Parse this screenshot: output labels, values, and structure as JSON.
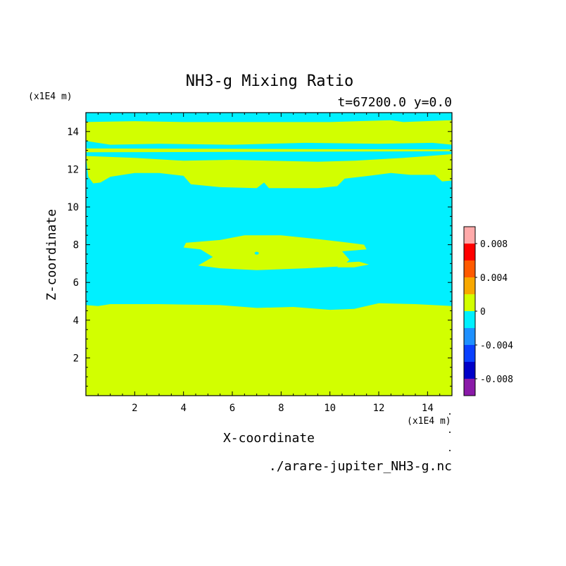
{
  "chart_data": {
    "type": "heatmap",
    "title": "NH3-g Mixing Ratio",
    "subtitle": "t=67200.0 y=0.0",
    "xlabel": "X-coordinate",
    "ylabel": "Z-coordinate",
    "x_unit": "(x1E4 m)",
    "y_unit": "(x1E4 m)",
    "xlim": [
      0,
      15
    ],
    "ylim": [
      0,
      15
    ],
    "x_ticks": [
      2,
      4,
      6,
      8,
      10,
      12,
      14
    ],
    "y_ticks": [
      2,
      4,
      6,
      8,
      10,
      12,
      14
    ],
    "source_file": "./arare-jupiter_NH3-g.nc",
    "colorbar": {
      "levels": [
        -0.01,
        -0.008,
        -0.006,
        -0.004,
        -0.002,
        0,
        0.002,
        0.004,
        0.006,
        0.008,
        0.01
      ],
      "colors": [
        "#8a1aa8",
        "#0000c8",
        "#0a40ff",
        "#1e90ff",
        "#00f0ff",
        "#d2ff00",
        "#f8a800",
        "#ff5a00",
        "#ff0000",
        "#ffaaaa"
      ],
      "tick_labels": [
        {
          "value": 0.008,
          "label": "0.008"
        },
        {
          "value": 0.004,
          "label": "0.004"
        },
        {
          "value": 0,
          "label": "0"
        },
        {
          "value": -0.004,
          "label": "-0.004"
        },
        {
          "value": -0.008,
          "label": "-0.008"
        }
      ]
    },
    "regions": [
      {
        "level": "0_to_0.002",
        "color": "#d2ff00",
        "description": "lower layer",
        "polygon": [
          [
            0,
            0
          ],
          [
            15,
            0
          ],
          [
            15,
            4.75
          ],
          [
            13.5,
            4.85
          ],
          [
            12,
            4.9
          ],
          [
            11,
            4.6
          ],
          [
            10,
            4.55
          ],
          [
            8.5,
            4.7
          ],
          [
            7,
            4.65
          ],
          [
            5.5,
            4.8
          ],
          [
            3,
            4.85
          ],
          [
            1,
            4.85
          ],
          [
            0.5,
            4.75
          ],
          [
            0,
            4.8
          ]
        ]
      },
      {
        "level": "0_to_0.002",
        "color": "#d2ff00",
        "description": "top band",
        "polygon": [
          [
            0,
            13.5
          ],
          [
            1,
            13.3
          ],
          [
            3,
            13.35
          ],
          [
            6,
            13.3
          ],
          [
            9,
            13.4
          ],
          [
            12,
            13.35
          ],
          [
            14.2,
            13.4
          ],
          [
            15,
            13.3
          ],
          [
            15,
            14.6
          ],
          [
            13,
            14.5
          ],
          [
            12.5,
            14.6
          ],
          [
            10,
            14.5
          ],
          [
            8,
            14.5
          ],
          [
            6,
            14.5
          ],
          [
            4,
            14.5
          ],
          [
            2,
            14.55
          ],
          [
            0,
            14.5
          ]
        ]
      },
      {
        "level": "0_to_0.002",
        "color": "#d2ff00",
        "description": "thin band",
        "polygon": [
          [
            0,
            12.9
          ],
          [
            15,
            12.95
          ],
          [
            15,
            13.05
          ],
          [
            0,
            13.1
          ]
        ]
      },
      {
        "level": "0_to_0.002",
        "color": "#d2ff00",
        "description": "upper blobs",
        "polygon": [
          [
            0.1,
            11.6
          ],
          [
            0.3,
            11.25
          ],
          [
            0.6,
            11.3
          ],
          [
            1,
            11.6
          ],
          [
            2,
            11.8
          ],
          [
            3,
            11.8
          ],
          [
            4,
            11.65
          ],
          [
            4.3,
            11.2
          ],
          [
            5.5,
            11.05
          ],
          [
            7,
            11
          ],
          [
            7.3,
            11.3
          ],
          [
            7.5,
            11
          ],
          [
            9.5,
            11
          ],
          [
            10.3,
            11.1
          ],
          [
            10.6,
            11.5
          ],
          [
            11.6,
            11.65
          ],
          [
            12.5,
            11.8
          ],
          [
            13.3,
            11.7
          ],
          [
            14.3,
            11.7
          ],
          [
            14.6,
            11.35
          ],
          [
            15,
            11.4
          ],
          [
            15,
            12.8
          ],
          [
            13,
            12.6
          ],
          [
            11,
            12.45
          ],
          [
            9.5,
            12.4
          ],
          [
            7.5,
            12.45
          ],
          [
            6,
            12.5
          ],
          [
            4,
            12.45
          ],
          [
            2,
            12.6
          ],
          [
            0,
            12.7
          ]
        ]
      },
      {
        "level": "0_to_0.002",
        "color": "#d2ff00",
        "description": "middle blob",
        "polygon": [
          [
            4.1,
            8.1
          ],
          [
            5.5,
            8.25
          ],
          [
            6.5,
            8.5
          ],
          [
            8,
            8.5
          ],
          [
            9.5,
            8.3
          ],
          [
            10.5,
            8.15
          ],
          [
            11.4,
            8
          ],
          [
            11.5,
            7.75
          ],
          [
            10.5,
            7.65
          ],
          [
            10.8,
            7.2
          ],
          [
            10.5,
            6.85
          ],
          [
            9,
            6.75
          ],
          [
            7,
            6.65
          ],
          [
            5.5,
            6.75
          ],
          [
            4.6,
            6.9
          ],
          [
            5.2,
            7.35
          ],
          [
            4.7,
            7.75
          ],
          [
            4,
            7.85
          ]
        ]
      },
      {
        "level": "0_to_0.002",
        "color": "#d2ff00",
        "description": "small blob",
        "polygon": [
          [
            10.3,
            6.8
          ],
          [
            10.5,
            7.05
          ],
          [
            11.2,
            7.1
          ],
          [
            11.6,
            6.95
          ],
          [
            11,
            6.8
          ]
        ]
      }
    ]
  },
  "background_color": "#00f0ff"
}
